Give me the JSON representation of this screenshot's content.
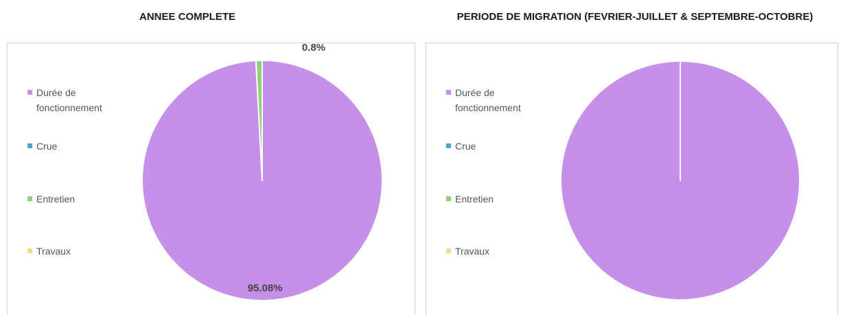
{
  "chart_data": [
    {
      "type": "pie",
      "title": "ANNEE COMPLETE",
      "categories": [
        "Durée de fonctionnement",
        "Crue",
        "Entretien",
        "Travaux"
      ],
      "values": [
        95.08,
        0,
        0.8,
        0
      ],
      "value_labels": [
        "95.08%",
        null,
        "0.8%",
        null
      ],
      "colors": [
        "#c690e8",
        "#4ea6c8",
        "#8fd17a",
        "#f5dc8c"
      ],
      "legend": "left"
    },
    {
      "type": "pie",
      "title": "PERIODE DE MIGRATION (FEVRIER-JUILLET & SEPTEMBRE-OCTOBRE)",
      "categories": [
        "Durée de fonctionnement",
        "Crue",
        "Entretien",
        "Travaux"
      ],
      "values": [
        100,
        0,
        0,
        0
      ],
      "colors": [
        "#c690e8",
        "#4ea6c8",
        "#8fd17a",
        "#f5dc8c"
      ],
      "legend": "left"
    }
  ]
}
